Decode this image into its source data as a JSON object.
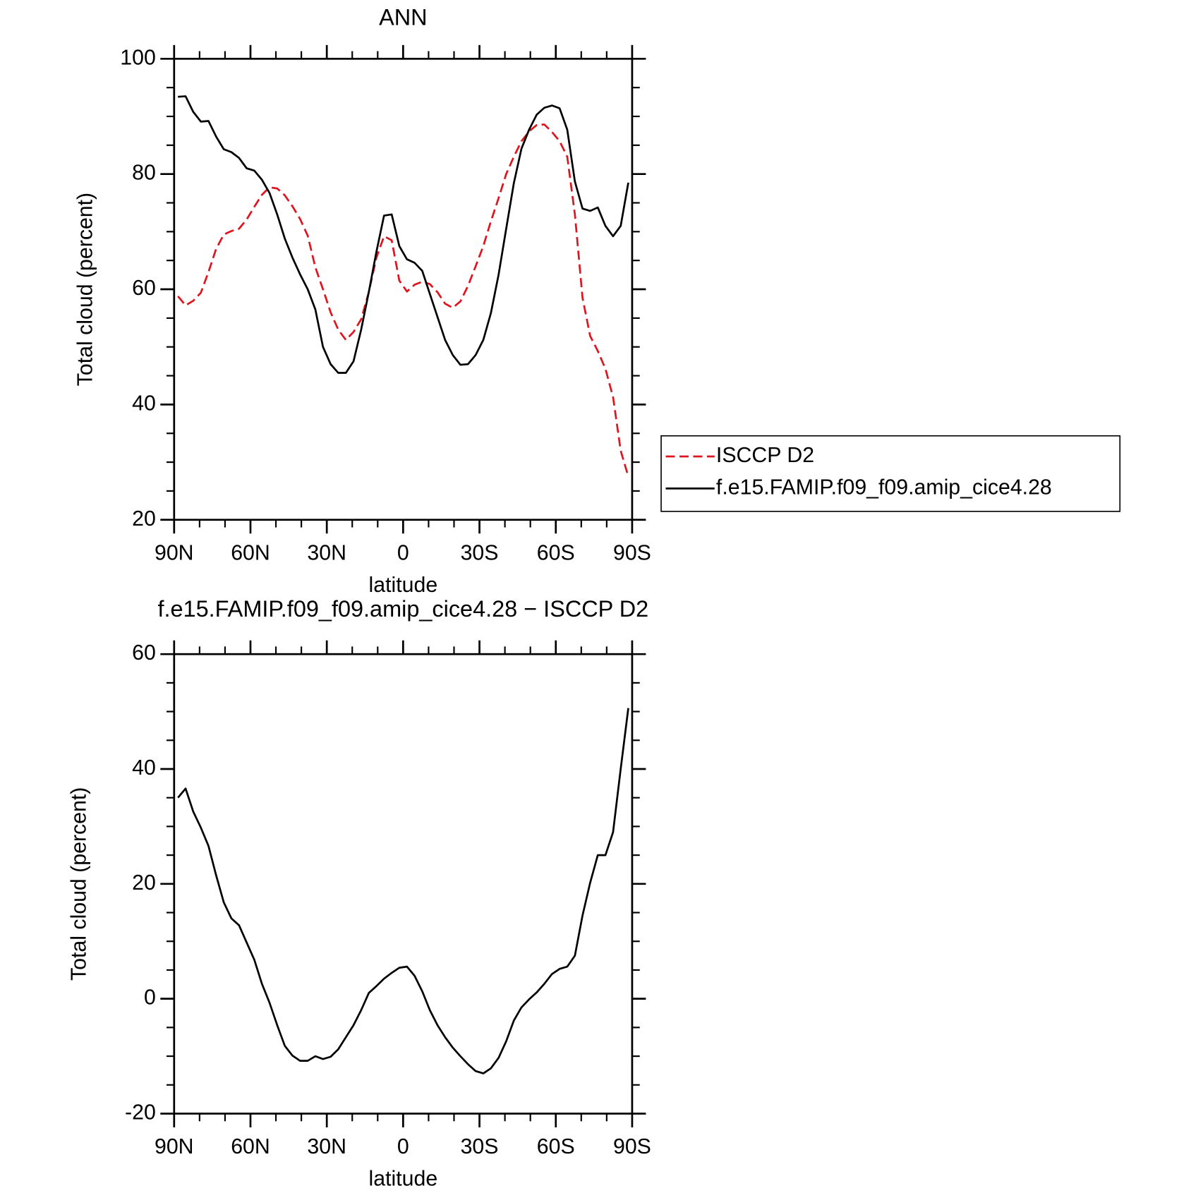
{
  "chart_data": [
    {
      "type": "line",
      "title": "ANN",
      "xlabel": "latitude",
      "ylabel": "Total cloud (percent)",
      "x": [
        88.5,
        85.5,
        82.5,
        79.5,
        76.5,
        73.5,
        70.5,
        67.5,
        64.5,
        61.5,
        58.5,
        55.5,
        52.5,
        49.5,
        46.5,
        43.5,
        40.5,
        37.5,
        34.5,
        31.5,
        28.5,
        25.5,
        22.5,
        19.5,
        16.5,
        13.5,
        10.5,
        7.5,
        4.5,
        1.5,
        -1.5,
        -4.5,
        -7.5,
        -10.5,
        -13.5,
        -16.5,
        -19.5,
        -22.5,
        -25.5,
        -28.5,
        -31.5,
        -34.5,
        -37.5,
        -40.5,
        -43.5,
        -46.5,
        -49.5,
        -52.5,
        -55.5,
        -58.5,
        -61.5,
        -64.5,
        -67.5,
        -70.5,
        -73.5,
        -76.5,
        -79.5,
        -82.5,
        -85.5,
        -88.5
      ],
      "series": [
        {
          "name": "ISCCP D2",
          "color": "#e0141e",
          "linestyle": "dashed",
          "values": [
            58.8,
            57.2,
            58,
            59.4,
            63,
            67,
            69.5,
            70.1,
            70.5,
            72.1,
            74.3,
            76.4,
            77.7,
            77.5,
            76.3,
            74.4,
            72.2,
            69.3,
            63.8,
            60,
            56,
            53,
            51.2,
            52.6,
            54.8,
            59.5,
            65.5,
            69.2,
            68.5,
            61.5,
            59.6,
            60.8,
            61.3,
            60.9,
            59.5,
            57.5,
            56.8,
            57.9,
            60.6,
            64,
            67.5,
            71.8,
            75.8,
            80,
            83,
            85.7,
            87.4,
            88.5,
            88.6,
            87.3,
            85.7,
            83,
            73,
            58.5,
            51.9,
            49.3,
            46.2,
            41.3,
            32,
            27.5
          ]
        },
        {
          "name": "f.e15.FAMIP.f09_f09.amip_cice4.28",
          "color": "#000000",
          "linestyle": "solid",
          "values": [
            93.4,
            93.5,
            90.8,
            89.1,
            89.2,
            86.5,
            84.3,
            83.8,
            82.8,
            81.0,
            80.6,
            79.0,
            76.7,
            73.0,
            68.8,
            65.5,
            62.6,
            60.0,
            56.5,
            50.0,
            47.0,
            45.5,
            45.5,
            47.5,
            53,
            59.5,
            66.5,
            72.8,
            73.0,
            67.5,
            65.2,
            64.6,
            63.2,
            59.2,
            55.2,
            51.2,
            48.6,
            46.9,
            47.0,
            48.6,
            51.2,
            55.9,
            62.5,
            70.5,
            78.4,
            84.4,
            87.7,
            90.3,
            91.5,
            91.9,
            91.4,
            87.7,
            78.7,
            74,
            73.6,
            74.2,
            71,
            69.2,
            71,
            78.5
          ]
        }
      ],
      "xlim": [
        90,
        -90
      ],
      "xticks": [
        {
          "value": 90,
          "label": "90N"
        },
        {
          "value": 60,
          "label": "60N"
        },
        {
          "value": 30,
          "label": "30N"
        },
        0,
        {
          "value": -30,
          "label": "30S"
        },
        {
          "value": -60,
          "label": "60S"
        },
        {
          "value": -90,
          "label": "90S"
        }
      ],
      "ylim": [
        20,
        100
      ],
      "yticks": [
        20,
        40,
        60,
        80,
        100
      ],
      "legend": "right"
    },
    {
      "type": "line",
      "title": "f.e15.FAMIP.f09_f09.amip_cice4.28 − ISCCP D2",
      "xlabel": "latitude",
      "ylabel": "Total cloud (percent)",
      "x": [
        88.5,
        85.5,
        82.5,
        79.5,
        76.5,
        73.5,
        70.5,
        67.5,
        64.5,
        61.5,
        58.5,
        55.5,
        52.5,
        49.5,
        46.5,
        43.5,
        40.5,
        37.5,
        34.5,
        31.5,
        28.5,
        25.5,
        22.5,
        19.5,
        16.5,
        13.5,
        10.5,
        7.5,
        4.5,
        1.5,
        -1.5,
        -4.5,
        -7.5,
        -10.5,
        -13.5,
        -16.5,
        -19.5,
        -22.5,
        -25.5,
        -28.5,
        -31.5,
        -34.5,
        -37.5,
        -40.5,
        -43.5,
        -46.5,
        -49.5,
        -52.5,
        -55.5,
        -58.5,
        -61.5,
        -64.5,
        -67.5,
        -70.5,
        -73.5,
        -76.5,
        -79.5,
        -82.5,
        -85.5,
        -88.5
      ],
      "series": [
        {
          "color": "#000000",
          "linestyle": "solid",
          "values": [
            35,
            36.6,
            32.6,
            29.8,
            26.6,
            21.5,
            16.8,
            14,
            12.8,
            9.8,
            6.8,
            2.6,
            -0.7,
            -4.6,
            -8.2,
            -9.9,
            -10.8,
            -10.8,
            -10,
            -10.5,
            -10.1,
            -8.8,
            -6.7,
            -4.6,
            -2,
            1,
            2.2,
            3.5,
            4.5,
            5.4,
            5.6,
            4,
            1.3,
            -2,
            -4.6,
            -6.7,
            -8.5,
            -10,
            -11.4,
            -12.6,
            -13,
            -12.1,
            -10.3,
            -7.4,
            -3.8,
            -1.5,
            -0.1,
            1.1,
            2.6,
            4.3,
            5.2,
            5.6,
            7.5,
            14.5,
            20.2,
            25,
            25,
            29,
            40,
            50.6
          ]
        }
      ],
      "xlim": [
        90,
        -90
      ],
      "xticks": [
        {
          "value": 90,
          "label": "90N"
        },
        {
          "value": 60,
          "label": "60N"
        },
        {
          "value": 30,
          "label": "30N"
        },
        0,
        {
          "value": -30,
          "label": "30S"
        },
        {
          "value": -60,
          "label": "60S"
        },
        {
          "value": -90,
          "label": "90S"
        }
      ],
      "ylim": [
        -20,
        60
      ],
      "yticks": [
        -20,
        0,
        20,
        40,
        60
      ]
    }
  ]
}
